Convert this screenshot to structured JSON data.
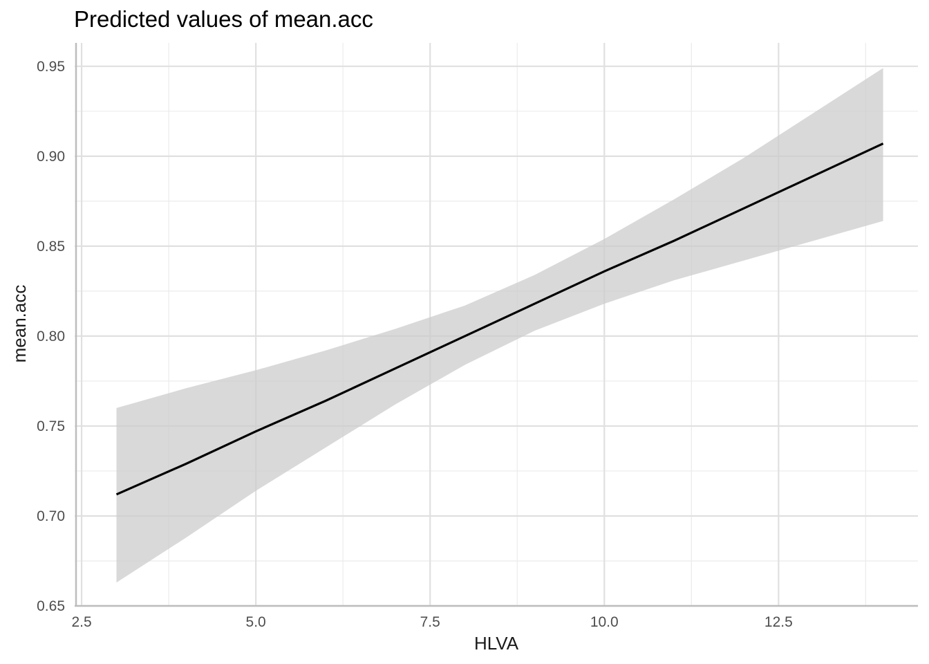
{
  "chart_data": {
    "type": "line",
    "title": "Predicted values of mean.acc",
    "xlabel": "HLVA",
    "ylabel": "mean.acc",
    "xlim": [
      2.4,
      14.5
    ],
    "ylim": [
      0.65,
      0.963
    ],
    "x_ticks": [
      2.5,
      5.0,
      7.5,
      10.0,
      12.5
    ],
    "x_tick_labels": [
      "2.5",
      "5.0",
      "7.5",
      "10.0",
      "12.5"
    ],
    "y_ticks": [
      0.65,
      0.7,
      0.75,
      0.8,
      0.85,
      0.9,
      0.95
    ],
    "y_tick_labels": [
      "0.65",
      "0.70",
      "0.75",
      "0.80",
      "0.85",
      "0.90",
      "0.95"
    ],
    "grid": true,
    "series": [
      {
        "x": [
          3,
          4,
          5,
          6,
          7,
          8,
          9,
          10,
          11,
          12,
          13,
          14
        ],
        "predicted": [
          0.712,
          0.729,
          0.747,
          0.764,
          0.782,
          0.8,
          0.818,
          0.836,
          0.853,
          0.871,
          0.889,
          0.907
        ],
        "conf_low": [
          0.663,
          0.688,
          0.714,
          0.738,
          0.762,
          0.784,
          0.803,
          0.818,
          0.831,
          0.842,
          0.853,
          0.864
        ],
        "conf_high": [
          0.76,
          0.771,
          0.781,
          0.792,
          0.804,
          0.817,
          0.834,
          0.854,
          0.876,
          0.899,
          0.924,
          0.949
        ],
        "line_color": "#000000",
        "band_color": "#cccccc"
      }
    ]
  }
}
